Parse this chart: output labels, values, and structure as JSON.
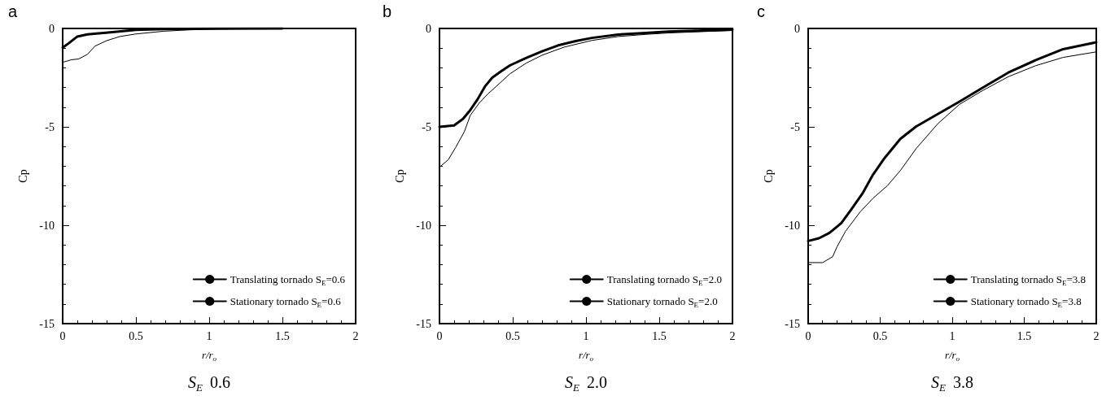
{
  "chart_data": [
    {
      "type": "line",
      "title": "a",
      "xlabel": "r/r$_{o}$",
      "ylabel": "Cp",
      "annotations": [
        "S$_{E}$ 0.6"
      ],
      "xlim": [
        0,
        2
      ],
      "ylim": [
        -15,
        0
      ],
      "xticks": [
        0,
        0.5,
        1,
        1.5,
        2
      ],
      "yticks": [
        -15,
        -10,
        -5,
        0
      ],
      "legend": "bottom right",
      "line_style": "solid",
      "marker": "none",
      "grid": false,
      "series": [
        {
          "name": "Translating tornado S$_{E}$=0.6",
          "color": "#000000",
          "x": [
            0,
            0.04,
            0.1,
            0.17,
            0.31,
            0.5,
            0.69,
            1.0,
            1.5
          ],
          "values": [
            -0.97,
            -0.76,
            -0.41,
            -0.3,
            -0.21,
            -0.07,
            -0.03,
            -0.01,
            0
          ]
        },
        {
          "name": "Stationary tornado S$_{E}$=0.6",
          "color": "#000000",
          "x": [
            0,
            0.06,
            0.11,
            0.17,
            0.22,
            0.3,
            0.39,
            0.5,
            0.69,
            0.87,
            1.06,
            1.5
          ],
          "values": [
            -1.72,
            -1.59,
            -1.55,
            -1.31,
            -0.9,
            -0.62,
            -0.41,
            -0.28,
            -0.14,
            -0.07,
            -0.03,
            0
          ]
        }
      ]
    },
    {
      "type": "line",
      "title": "b",
      "xlabel": "r/r$_{o}$",
      "ylabel": "Cp",
      "annotations": [
        "S$_{E}$ 2.0"
      ],
      "xlim": [
        0,
        2
      ],
      "ylim": [
        -15,
        0
      ],
      "xticks": [
        0,
        0.5,
        1,
        1.5,
        2
      ],
      "yticks": [
        -15,
        -10,
        -5,
        0
      ],
      "legend": "bottom right",
      "line_style": "solid",
      "marker": "none",
      "grid": false,
      "series": [
        {
          "name": "Translating tornado S$_{E}$=2.0",
          "color": "#000000",
          "x": [
            0,
            0.1,
            0.16,
            0.21,
            0.26,
            0.31,
            0.36,
            0.42,
            0.48,
            0.59,
            0.7,
            0.81,
            0.93,
            1.04,
            1.22,
            1.41,
            1.56,
            2
          ],
          "values": [
            -5.0,
            -4.93,
            -4.6,
            -4.15,
            -3.6,
            -2.95,
            -2.5,
            -2.18,
            -1.88,
            -1.5,
            -1.16,
            -0.86,
            -0.64,
            -0.48,
            -0.31,
            -0.23,
            -0.16,
            -0.06
          ]
        },
        {
          "name": "Stationary tornado S$_{E}$=2.0",
          "color": "#000000",
          "x": [
            0,
            0.06,
            0.11,
            0.17,
            0.21,
            0.27,
            0.33,
            0.41,
            0.48,
            0.59,
            0.7,
            0.85,
            1.04,
            1.22,
            1.41,
            1.56,
            2
          ],
          "values": [
            -7.05,
            -6.67,
            -6.05,
            -5.24,
            -4.42,
            -3.8,
            -3.33,
            -2.79,
            -2.31,
            -1.77,
            -1.36,
            -0.95,
            -0.61,
            -0.41,
            -0.3,
            -0.23,
            -0.1
          ]
        }
      ]
    },
    {
      "type": "line",
      "title": "c",
      "xlabel": "r/r$_{o}$",
      "ylabel": "Cp",
      "annotations": [
        "S$_{E}$ 3.8"
      ],
      "xlim": [
        0,
        2
      ],
      "ylim": [
        -15,
        0
      ],
      "xticks": [
        0,
        0.5,
        1,
        1.5,
        2
      ],
      "yticks": [
        -15,
        -10,
        -5,
        0
      ],
      "legend": "bottom right",
      "line_style": "solid",
      "marker": "none",
      "grid": false,
      "series": [
        {
          "name": "Translating tornado S$_{E}$=3.8",
          "color": "#000000",
          "x": [
            0,
            0.075,
            0.15,
            0.23,
            0.3,
            0.38,
            0.45,
            0.53,
            0.64,
            0.75,
            0.9,
            1.05,
            1.21,
            1.39,
            1.58,
            1.77,
            2
          ],
          "values": [
            -10.8,
            -10.66,
            -10.38,
            -9.89,
            -9.19,
            -8.35,
            -7.43,
            -6.59,
            -5.61,
            -4.98,
            -4.35,
            -3.72,
            -3.02,
            -2.24,
            -1.61,
            -1.05,
            -0.7
          ]
        },
        {
          "name": "Stationary tornado S$_{E}$=3.8",
          "color": "#000000",
          "x": [
            0,
            0.1,
            0.17,
            0.2,
            0.26,
            0.36,
            0.45,
            0.55,
            0.64,
            0.75,
            0.9,
            1.05,
            1.21,
            1.39,
            1.58,
            1.77,
            2
          ],
          "values": [
            -11.9,
            -11.9,
            -11.6,
            -11.1,
            -10.3,
            -9.33,
            -8.63,
            -7.99,
            -7.22,
            -6.1,
            -4.84,
            -3.86,
            -3.16,
            -2.45,
            -1.89,
            -1.47,
            -1.19
          ]
        }
      ]
    }
  ]
}
